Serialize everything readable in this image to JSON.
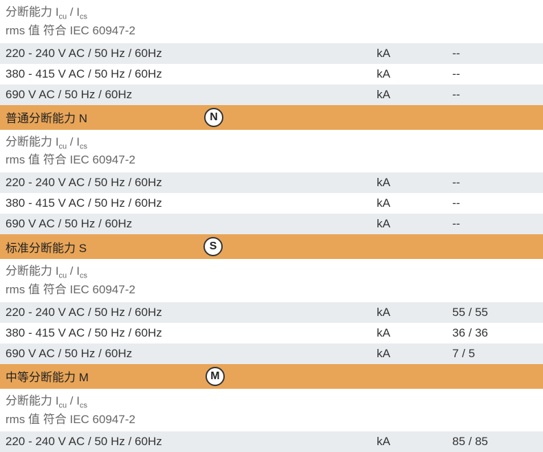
{
  "subheader": {
    "line1_prefix": "分断能力 I",
    "line1_sub1": "cu",
    "line1_mid": " / I",
    "line1_sub2": "cs",
    "line2": "rms 值 符合 IEC 60947-2"
  },
  "sections": [
    {
      "rows": [
        {
          "label": "220 - 240 V AC / 50 Hz / 60Hz",
          "unit": "kA",
          "value": "--",
          "bg": "light"
        },
        {
          "label": "380 - 415 V AC / 50 Hz / 60Hz",
          "unit": "kA",
          "value": "--",
          "bg": "white"
        },
        {
          "label": "690 V AC / 50 Hz / 60Hz",
          "unit": "kA",
          "value": "--",
          "bg": "light"
        }
      ]
    },
    {
      "header": "普通分断能力 N",
      "icon": "N",
      "rows": [
        {
          "label": "220 - 240 V AC / 50 Hz / 60Hz",
          "unit": "kA",
          "value": "--",
          "bg": "light"
        },
        {
          "label": "380 - 415 V AC / 50 Hz / 60Hz",
          "unit": "kA",
          "value": "--",
          "bg": "white"
        },
        {
          "label": "690 V AC / 50 Hz / 60Hz",
          "unit": "kA",
          "value": "--",
          "bg": "light"
        }
      ]
    },
    {
      "header": "标准分断能力 S",
      "icon": "S",
      "rows": [
        {
          "label": "220 - 240 V AC / 50 Hz / 60Hz",
          "unit": "kA",
          "value": "55 / 55",
          "bg": "light"
        },
        {
          "label": "380 - 415 V AC / 50 Hz / 60Hz",
          "unit": "kA",
          "value": "36 / 36",
          "bg": "white"
        },
        {
          "label": "690 V AC / 50 Hz / 60Hz",
          "unit": "kA",
          "value": "7 / 5",
          "bg": "light"
        }
      ]
    },
    {
      "header": "中等分断能力 M",
      "icon": "M",
      "rows": [
        {
          "label": "220 - 240 V AC / 50 Hz / 60Hz",
          "unit": "kA",
          "value": "85 / 85",
          "bg": "light"
        }
      ]
    }
  ],
  "colors": {
    "orange": "#e8a558",
    "light": "#e8ecef",
    "white": "#ffffff",
    "text": "#333333"
  }
}
